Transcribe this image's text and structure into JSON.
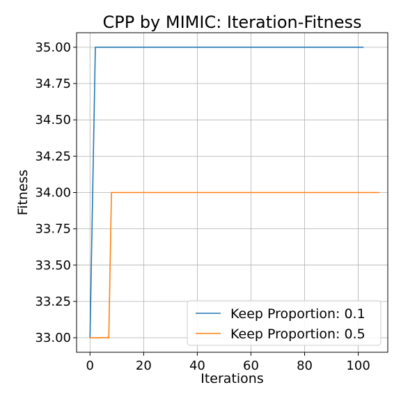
{
  "chart_data": {
    "type": "line",
    "title": "CPP by MIMIC: Iteration-Fitness",
    "xlabel": "Iterations",
    "ylabel": "Fitness",
    "xlim": [
      -5,
      111
    ],
    "ylim": [
      32.9,
      35.1
    ],
    "xticks": [
      0,
      20,
      40,
      60,
      80,
      100
    ],
    "yticks": [
      33.0,
      33.25,
      33.5,
      33.75,
      34.0,
      34.25,
      34.5,
      34.75,
      35.0
    ],
    "xtick_labels": [
      "0",
      "20",
      "40",
      "60",
      "80",
      "100"
    ],
    "ytick_labels": [
      "33.00",
      "33.25",
      "33.50",
      "33.75",
      "34.00",
      "34.25",
      "34.50",
      "34.75",
      "35.00"
    ],
    "grid": true,
    "legend_position": "lower-right",
    "series": [
      {
        "name": "Keep Proportion: 0.1",
        "color": "#1f77b4",
        "x": [
          0,
          2,
          102
        ],
        "y": [
          33.0,
          35.0,
          35.0
        ]
      },
      {
        "name": "Keep Proportion: 0.5",
        "color": "#ff7f0e",
        "x": [
          0,
          7,
          8,
          108
        ],
        "y": [
          33.0,
          33.0,
          34.0,
          34.0
        ]
      }
    ]
  }
}
